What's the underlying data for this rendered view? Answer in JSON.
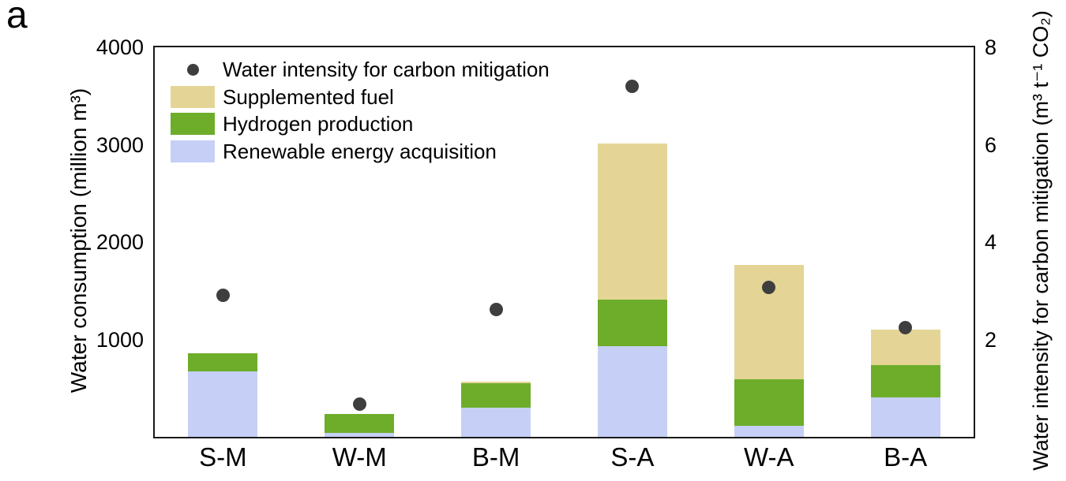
{
  "panel_label": "a",
  "colors": {
    "supplemented_fuel": "#e4d597",
    "hydrogen_production": "#6dad2a",
    "renewable_energy": "#c6cff5",
    "intensity_dot": "#3e3e3e",
    "frame": "#1a1a1a"
  },
  "legend": [
    {
      "marker": "dot",
      "color": "#3e3e3e",
      "label": "Water intensity for carbon mitigation"
    },
    {
      "marker": "rect",
      "color": "#e4d597",
      "label": "Supplemented fuel"
    },
    {
      "marker": "rect",
      "color": "#6dad2a",
      "label": "Hydrogen production"
    },
    {
      "marker": "rect",
      "color": "#c6cff5",
      "label": "Renewable energy acquisition"
    }
  ],
  "chart_data": {
    "type": "bar",
    "subtype": "stacked-bars-with-point-overlay",
    "categories": [
      "S-M",
      "W-M",
      "B-M",
      "S-A",
      "W-A",
      "B-A"
    ],
    "series": [
      {
        "name": "Renewable energy acquisition",
        "color": "#c6cff5",
        "values": [
          670,
          40,
          300,
          930,
          115,
          405
        ]
      },
      {
        "name": "Hydrogen production",
        "color": "#6dad2a",
        "values": [
          185,
          195,
          250,
          480,
          480,
          330
        ]
      },
      {
        "name": "Supplemented fuel",
        "color": "#e4d597",
        "values": [
          0,
          0,
          20,
          1600,
          1170,
          370
        ]
      }
    ],
    "stack_totals": [
      855,
      235,
      570,
      3010,
      1765,
      1105
    ],
    "points": {
      "name": "Water intensity for carbon mitigation",
      "color": "#3e3e3e",
      "axis": "right",
      "values": [
        2.9,
        0.68,
        2.62,
        7.2,
        3.07,
        2.24
      ]
    },
    "left_axis": {
      "label": "Water consumption (million m³)",
      "ticks": [
        1000,
        2000,
        3000,
        4000
      ],
      "min": 0,
      "max": 4000
    },
    "right_axis": {
      "label": "Water intensity for carbon mitigation (m³ t⁻¹ CO₂)",
      "ticks": [
        2,
        4,
        6,
        8
      ],
      "min": 0,
      "max": 8
    },
    "grid": false,
    "legend_position": "top-left-inside"
  }
}
